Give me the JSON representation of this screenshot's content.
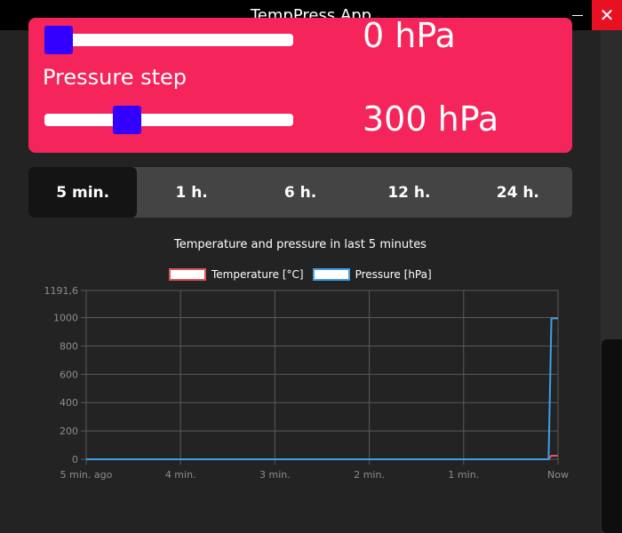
{
  "window": {
    "title": "TempPress App",
    "close_glyph": "✕"
  },
  "controls": {
    "top_value": "0 hPa",
    "top_slider_fraction": 0.0,
    "pressure_step_label": "Pressure step",
    "pressure_step_value": "300 hPa",
    "pressure_step_fraction": 0.31
  },
  "tabs": [
    {
      "label": "5 min.",
      "active": true
    },
    {
      "label": "1 h.",
      "active": false
    },
    {
      "label": "6 h.",
      "active": false
    },
    {
      "label": "12 h.",
      "active": false
    },
    {
      "label": "24 h.",
      "active": false
    }
  ],
  "colors": {
    "panel": "#f5245a",
    "thumb": "#3300ff",
    "temperature": "#e0555a",
    "pressure": "#3ea0e8",
    "grid": "#5a5a5a"
  },
  "chart_data": {
    "type": "line",
    "title": "Temperature and pressure in last 5 minutes",
    "x_categories": [
      "5 min. ago",
      "4 min.",
      "3 min.",
      "2 min.",
      "1 min.",
      "Now"
    ],
    "y_ticks": [
      "0",
      "200",
      "400",
      "600",
      "800",
      "1000",
      "1191,6"
    ],
    "ylim": [
      0,
      1191.6
    ],
    "xlim": [
      0,
      5
    ],
    "legend_position": "top-center",
    "series": [
      {
        "name": "Temperature [°C]",
        "color": "#e0555a",
        "x": [
          0,
          4.9,
          4.93,
          5
        ],
        "values": [
          0,
          0,
          25,
          25
        ]
      },
      {
        "name": "Pressure [hPa]",
        "color": "#3ea0e8",
        "x": [
          0,
          4.9,
          4.93,
          5
        ],
        "values": [
          0,
          0,
          995,
          995
        ]
      }
    ]
  }
}
